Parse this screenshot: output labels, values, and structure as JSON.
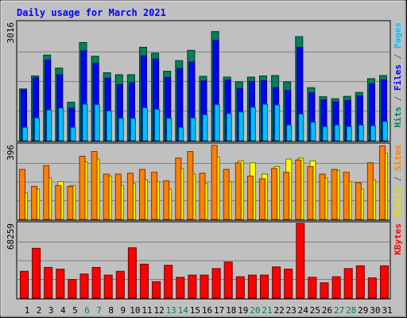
{
  "chart_data": [
    {
      "type": "bar",
      "title": "Daily usage for March 2021",
      "ymax_label": "3016",
      "ylim": [
        0,
        3016
      ],
      "categories": [
        "1",
        "2",
        "3",
        "4",
        "5",
        "6",
        "7",
        "8",
        "9",
        "10",
        "11",
        "12",
        "13",
        "14",
        "15",
        "16",
        "17",
        "18",
        "19",
        "20",
        "21",
        "22",
        "23",
        "24",
        "25",
        "26",
        "27",
        "28",
        "29",
        "30",
        "31"
      ],
      "weekend_days": [
        "6",
        "7",
        "13",
        "14",
        "20",
        "21",
        "27",
        "28"
      ],
      "axis_labels": [
        {
          "key": "hits",
          "text": "Hits",
          "color": "#00805c"
        },
        {
          "key": "sep1",
          "text": " / ",
          "color": "#606060"
        },
        {
          "key": "files",
          "text": "Files",
          "color": "#0000ff"
        },
        {
          "key": "sep2",
          "text": " / ",
          "color": "#606060"
        },
        {
          "key": "pages",
          "text": "Pages",
          "color": "#00c0ff"
        }
      ],
      "series": [
        {
          "name": "Hits",
          "color": "#00805c",
          "values": [
            1320,
            1650,
            2180,
            1850,
            980,
            2500,
            2150,
            1730,
            1680,
            1680,
            2380,
            2230,
            1770,
            2040,
            2300,
            1640,
            2780,
            1620,
            1500,
            1620,
            1650,
            1660,
            1500,
            2650,
            1350,
            1120,
            1070,
            1130,
            1230,
            1580,
            1660
          ]
        },
        {
          "name": "Files",
          "color": "#0000ff",
          "values": [
            1290,
            1600,
            2050,
            1680,
            830,
            2290,
            1970,
            1590,
            1430,
            1480,
            2160,
            2080,
            1610,
            1840,
            2000,
            1520,
            2560,
            1540,
            1330,
            1510,
            1530,
            1350,
            1280,
            2380,
            1220,
            1040,
            990,
            1020,
            1140,
            1450,
            1550
          ]
        },
        {
          "name": "Pages",
          "color": "#00c0ff",
          "values": [
            340,
            580,
            780,
            830,
            340,
            930,
            920,
            760,
            570,
            570,
            840,
            800,
            570,
            340,
            580,
            660,
            920,
            690,
            730,
            850,
            930,
            910,
            400,
            680,
            470,
            360,
            400,
            360,
            400,
            380,
            490
          ]
        }
      ]
    },
    {
      "type": "bar",
      "ymax_label": "396",
      "ylim": [
        0,
        396
      ],
      "axis_labels": [
        {
          "key": "visits",
          "text": "Visits",
          "color": "#e0e000"
        },
        {
          "key": "sep",
          "text": " / ",
          "color": "#606060"
        },
        {
          "key": "sites",
          "text": "Sites",
          "color": "#ff8000"
        }
      ],
      "series": [
        {
          "name": "Visits",
          "color": "#ffff00",
          "values": [
            140,
            160,
            220,
            200,
            180,
            305,
            320,
            230,
            180,
            190,
            210,
            200,
            160,
            270,
            240,
            190,
            330,
            200,
            310,
            300,
            240,
            280,
            320,
            325,
            310,
            220,
            260,
            200,
            160,
            210,
            350
          ]
        },
        {
          "name": "Sites",
          "color": "#ff8000",
          "values": [
            265,
            175,
            285,
            180,
            175,
            335,
            360,
            240,
            240,
            245,
            265,
            250,
            205,
            325,
            360,
            245,
            393,
            265,
            300,
            230,
            215,
            270,
            250,
            315,
            280,
            240,
            265,
            250,
            195,
            300,
            390
          ]
        }
      ]
    },
    {
      "type": "bar",
      "ymax_label": "68259",
      "ylim": [
        0,
        68259
      ],
      "axis_labels": [
        {
          "key": "kbytes",
          "text": "KBytes",
          "color": "#ff0000"
        }
      ],
      "series": [
        {
          "name": "KBytes",
          "color": "#ff0000",
          "values": [
            24500,
            45500,
            28000,
            26500,
            17000,
            22000,
            28000,
            21000,
            24500,
            46000,
            31000,
            15000,
            30000,
            19000,
            21000,
            21000,
            27000,
            33000,
            19500,
            21000,
            21000,
            28500,
            26500,
            68259,
            19000,
            14000,
            19500,
            27000,
            29500,
            18500,
            29500
          ]
        }
      ]
    }
  ]
}
